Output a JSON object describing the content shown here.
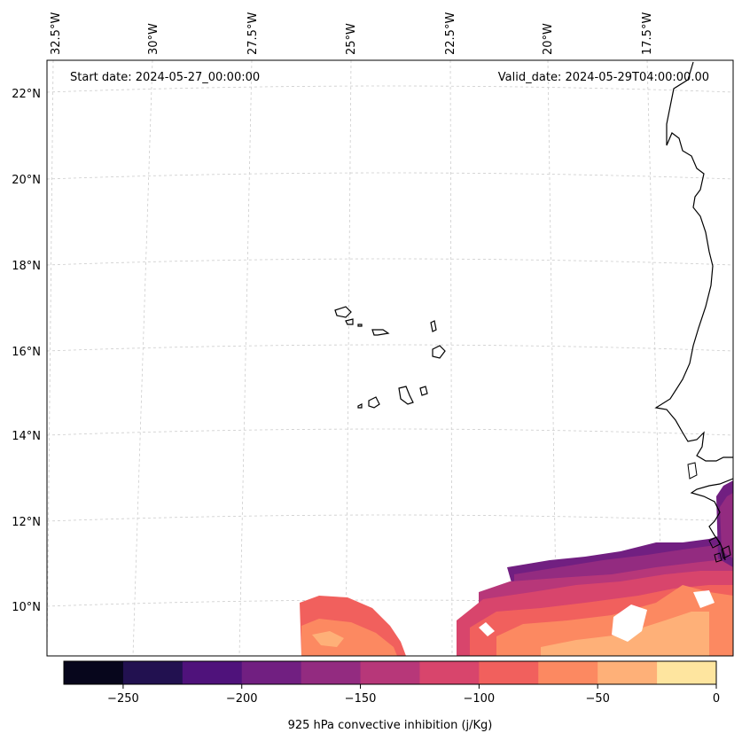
{
  "header": {
    "start_date": "Start date: 2024-05-27_00:00:00",
    "valid_date": "Valid_date: 2024-05-29T04:00:00.00"
  },
  "map": {
    "lon_labels": [
      "32.5°W",
      "30°W",
      "27.5°W",
      "25°W",
      "22.5°W",
      "20°W",
      "17.5°W"
    ],
    "lat_labels": [
      "22°N",
      "20°N",
      "18°N",
      "16°N",
      "14°N",
      "12°N",
      "10°N"
    ],
    "coast_color": "#000000",
    "grid_color": "#cccccc",
    "grid": true
  },
  "colorbar": {
    "label": "925 hPa convective inhibition (j/Kg)",
    "ticks": [
      "−250",
      "−200",
      "−150",
      "−100",
      "−50",
      "0"
    ],
    "range": [
      -275,
      0
    ],
    "colors": [
      "#07061c",
      "#221150",
      "#4f127b",
      "#711f81",
      "#932b80",
      "#b73779",
      "#d8456c",
      "#f1605d",
      "#fc8961",
      "#feb078",
      "#fee59f"
    ]
  }
}
